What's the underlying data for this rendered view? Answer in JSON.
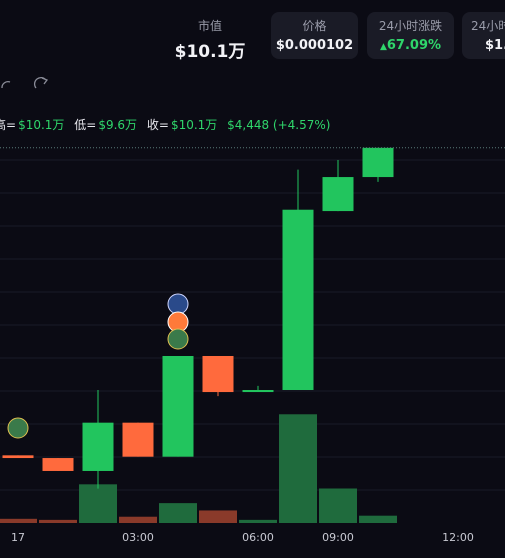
{
  "header": {
    "stats": [
      {
        "label": "市值",
        "value": "$10.1万"
      },
      {
        "label": "价格",
        "value": "$0.000102"
      },
      {
        "label": "24小时涨跌",
        "value": "67.09%"
      },
      {
        "label": "24小时",
        "value": "$1."
      }
    ]
  },
  "ohlc_line": {
    "items": [
      {
        "label": "高=",
        "value": "$10.1万"
      },
      {
        "label": "低=",
        "value": "$9.6万"
      },
      {
        "label": "收=",
        "value": "$10.1万"
      }
    ],
    "change": "$4,448 (+4.57%)"
  },
  "chart_data": {
    "type": "candlestick",
    "x": [
      0,
      1,
      2,
      3,
      4,
      5,
      6,
      7,
      8,
      9
    ],
    "open": [
      5.58,
      5.54,
      5.35,
      6.06,
      5.56,
      7.04,
      6.51,
      6.54,
      9.17,
      9.67
    ],
    "high": [
      5.58,
      5.54,
      6.54,
      6.06,
      7.04,
      7.04,
      6.6,
      9.78,
      9.92,
      10.1
    ],
    "low": [
      5.54,
      5.35,
      5.09,
      5.56,
      5.56,
      6.45,
      6.51,
      6.54,
      9.17,
      9.6
    ],
    "close": [
      5.54,
      5.35,
      6.06,
      5.56,
      7.04,
      6.51,
      6.54,
      9.19,
      9.67,
      10.1
    ],
    "volume": [
      4,
      3,
      37,
      6,
      19,
      12,
      3,
      104,
      33,
      7
    ],
    "up_color": "#22c55e",
    "down_color": "#ff6a3d",
    "volume_up_color": "#1f6b3d",
    "volume_down_color": "#8a3a2a",
    "xlim": [
      -0.45,
      12.175
    ],
    "ylim": [
      4.6,
      10.2
    ],
    "volume_lim": [
      0,
      110
    ],
    "xticks": [
      {
        "value": 0,
        "label": "17"
      },
      {
        "value": 3,
        "label": "03:00"
      },
      {
        "value": 6,
        "label": "06:00"
      },
      {
        "value": 8,
        "label": "09:00"
      },
      {
        "value": 11,
        "label": "12:00"
      }
    ]
  }
}
